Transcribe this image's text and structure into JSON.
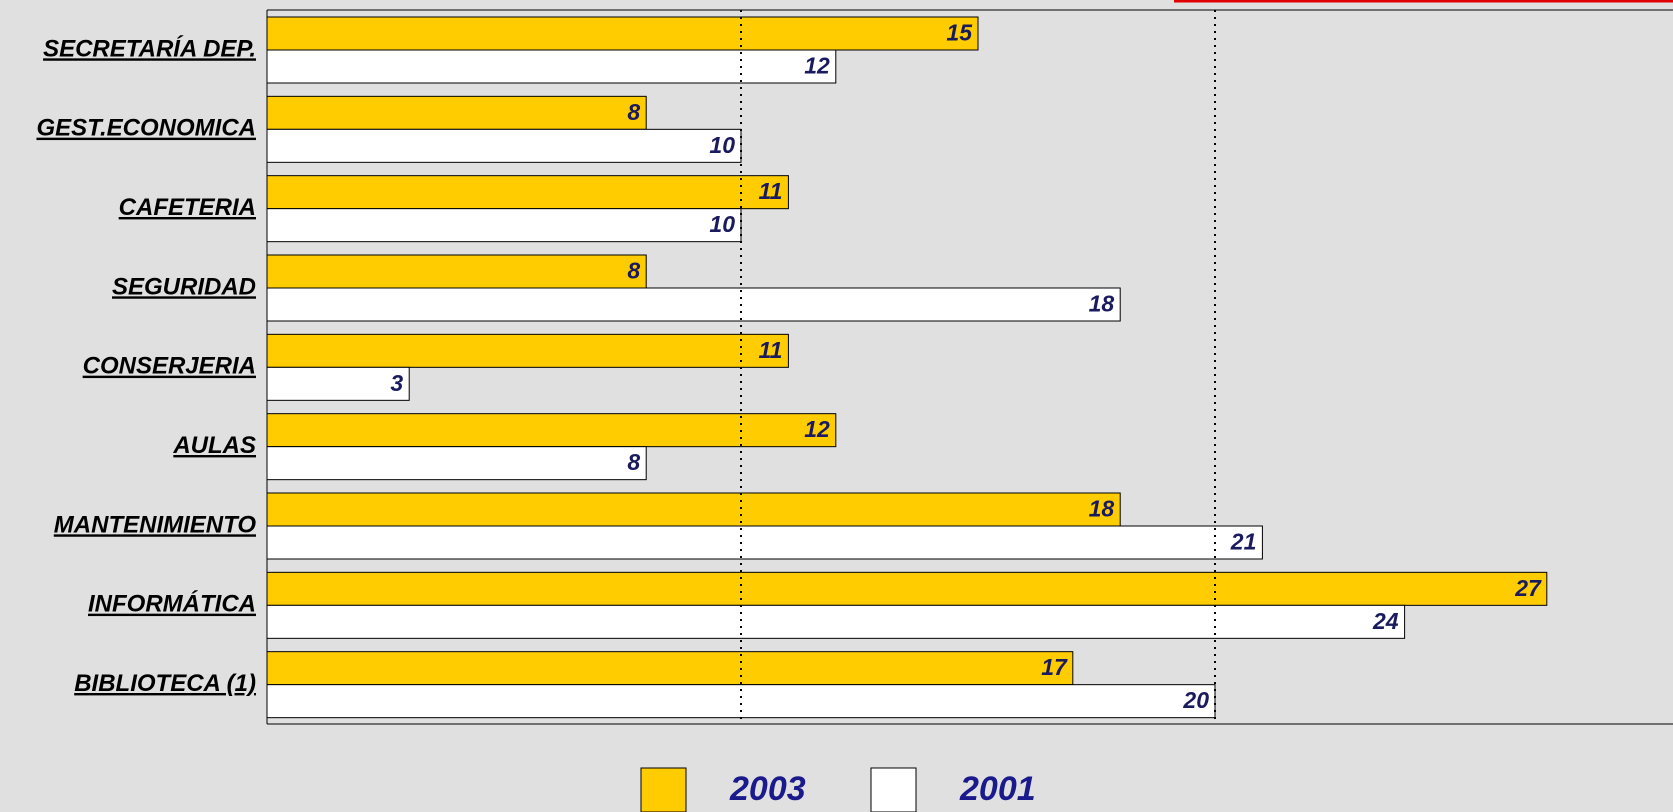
{
  "chart_data": {
    "type": "barh",
    "categories": [
      "SECRETARÍA DEP.",
      "GEST.ECONOMICA",
      "CAFETERIA",
      "SEGURIDAD",
      "CONSERJERIA",
      "AULAS",
      "MANTENIMIENTO",
      "INFORMÁTICA",
      "BIBLIOTECA (1)"
    ],
    "series": [
      {
        "name": "2003",
        "color": "#ffcc00",
        "values": [
          15,
          8,
          11,
          8,
          11,
          12,
          18,
          27,
          17
        ]
      },
      {
        "name": "2001",
        "color": "#ffffff",
        "values": [
          12,
          10,
          10,
          18,
          3,
          8,
          21,
          24,
          20
        ]
      }
    ],
    "xlim": [
      0,
      30
    ],
    "xticks": [
      10,
      20
    ],
    "grid": true,
    "legend": "bottom"
  }
}
